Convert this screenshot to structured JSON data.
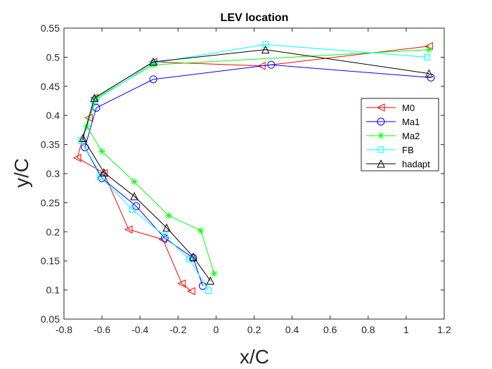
{
  "chart_data": {
    "type": "line",
    "title": "LEV location",
    "xlabel": "x/C",
    "ylabel": "y/C",
    "xlim": [
      -0.8,
      1.2
    ],
    "ylim": [
      0.05,
      0.55
    ],
    "xticks": [
      -0.8,
      -0.6,
      -0.4,
      -0.2,
      0,
      0.2,
      0.4,
      0.6,
      0.8,
      1,
      1.2
    ],
    "xtick_labels": [
      "-0.8",
      "-0.6",
      "-0.4",
      "-0.2",
      "0",
      "0.2",
      "0.4",
      "0.6",
      "0.8",
      "1",
      "1.2"
    ],
    "yticks": [
      0.05,
      0.1,
      0.15,
      0.2,
      0.25,
      0.3,
      0.35,
      0.4,
      0.45,
      0.5,
      0.55
    ],
    "ytick_labels": [
      "0.05",
      "0.1",
      "0.15",
      "0.2",
      "0.25",
      "0.3",
      "0.35",
      "0.4",
      "0.45",
      "0.5",
      "0.55"
    ],
    "grid": false,
    "box": true,
    "legend_position": "right",
    "series": [
      {
        "name": "M0",
        "color": "#ff0000",
        "marker": "triangle-left",
        "x": [
          -0.13,
          -0.18,
          -0.28,
          -0.46,
          -0.59,
          -0.73,
          -0.67,
          -0.64,
          -0.33,
          0.24,
          1.12
        ],
        "y": [
          0.098,
          0.111,
          0.187,
          0.204,
          0.301,
          0.327,
          0.396,
          0.43,
          0.492,
          0.485,
          0.519
        ]
      },
      {
        "name": "Ma1",
        "color": "#0000ff",
        "marker": "circle",
        "x": [
          -0.07,
          -0.12,
          -0.27,
          -0.42,
          -0.6,
          -0.69,
          -0.63,
          -0.33,
          0.29,
          1.13
        ],
        "y": [
          0.107,
          0.155,
          0.189,
          0.244,
          0.292,
          0.345,
          0.413,
          0.462,
          0.487,
          0.465
        ]
      },
      {
        "name": "Ma2",
        "color": "#00ff00",
        "marker": "asterisk",
        "x": [
          -0.01,
          -0.08,
          -0.25,
          -0.43,
          -0.6,
          -0.68,
          -0.63,
          -0.33,
          1.12
        ],
        "y": [
          0.128,
          0.202,
          0.228,
          0.286,
          0.338,
          0.381,
          0.43,
          0.487,
          0.513
        ]
      },
      {
        "name": "FB",
        "color": "#00ffff",
        "marker": "square",
        "x": [
          -0.04,
          -0.14,
          -0.27,
          -0.44,
          -0.61,
          -0.71,
          -0.64,
          -0.33,
          0.26,
          1.11
        ],
        "y": [
          0.099,
          0.153,
          0.193,
          0.238,
          0.295,
          0.357,
          0.425,
          0.49,
          0.522,
          0.5
        ]
      },
      {
        "name": "hadapt",
        "color": "#000000",
        "marker": "triangle-up",
        "x": [
          -0.03,
          -0.12,
          -0.26,
          -0.43,
          -0.59,
          -0.7,
          -0.64,
          -0.33,
          0.26,
          1.12
        ],
        "y": [
          0.116,
          0.157,
          0.207,
          0.261,
          0.302,
          0.361,
          0.43,
          0.492,
          0.513,
          0.472
        ]
      }
    ]
  }
}
